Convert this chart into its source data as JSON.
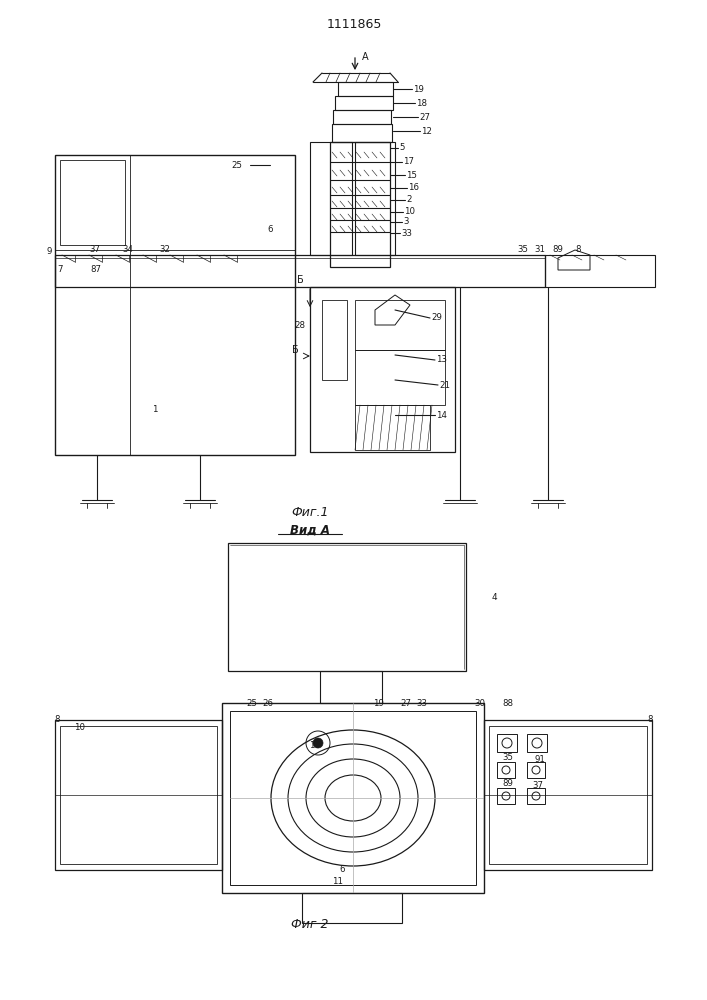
{
  "title": "1111865",
  "fig1_label": "Фиг.1",
  "fig2_label": "Фиг 2",
  "view_label": "Вид А",
  "bg_color": "#ffffff",
  "lc": "#1a1a1a",
  "lw": 0.8,
  "fig_width": 7.07,
  "fig_height": 10.0,
  "dpi": 100
}
